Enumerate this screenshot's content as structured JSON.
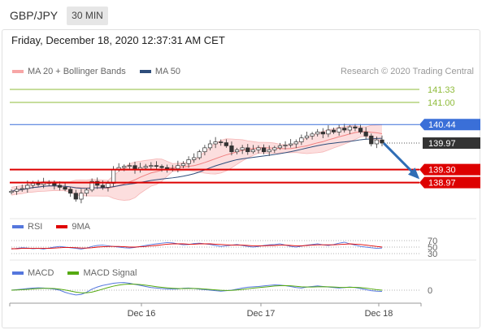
{
  "header": {
    "symbol": "GBP/JPY",
    "timeframe": "30 MIN"
  },
  "datetime": "Friday, December 18, 2020 12:37:31 AM CET",
  "credit": "Research © 2020 Trading Central",
  "colors": {
    "ma20": "#f08080",
    "ma50": "#2e4d7b",
    "bands": "#fbd3d3",
    "resistance_line": "#3a6fd8",
    "support_line": "#dd0000",
    "target_line": "#8fbb3a",
    "rsi": "#5577dd",
    "rsi9ma": "#e00000",
    "macd": "#5577dd",
    "macd_signal": "#55aa11",
    "arrow": "#2f6db5",
    "candle": "#333333"
  },
  "chart_data": [
    {
      "type": "candlestick",
      "pane": "price",
      "legend": [
        {
          "name": "MA 20 + Bollinger Bands",
          "color": "#f08080"
        },
        {
          "name": "MA 50",
          "color": "#2e4d7b"
        }
      ],
      "ylim": [
        138.2,
        141.7
      ],
      "x_ticks": [
        "Dec 16",
        "Dec 17",
        "Dec 18"
      ],
      "close_path": [
        138.75,
        138.8,
        138.82,
        138.9,
        138.95,
        138.92,
        138.98,
        138.95,
        138.9,
        138.85,
        138.8,
        138.7,
        138.55,
        138.7,
        138.78,
        139.0,
        138.9,
        138.85,
        138.95,
        139.3,
        139.35,
        139.38,
        139.4,
        139.3,
        139.35,
        139.38,
        139.4,
        139.38,
        139.35,
        139.3,
        139.32,
        139.4,
        139.45,
        139.55,
        139.6,
        139.75,
        139.85,
        139.95,
        140.0,
        139.98,
        139.9,
        139.75,
        139.8,
        139.85,
        139.75,
        139.8,
        139.85,
        139.75,
        139.8,
        139.85,
        139.9,
        139.92,
        139.95,
        140.0,
        140.1,
        140.15,
        140.2,
        140.25,
        140.2,
        140.3,
        140.25,
        140.35,
        140.3,
        140.38,
        140.35,
        140.25,
        140.15,
        139.95,
        140.05,
        139.97
      ],
      "levels": [
        {
          "label": "141.33",
          "value": 141.33,
          "kind": "target"
        },
        {
          "label": "141.00",
          "value": 141.0,
          "kind": "target"
        },
        {
          "label": "140.44",
          "value": 140.44,
          "kind": "resistance"
        },
        {
          "label": "139.97",
          "value": 139.97,
          "kind": "last"
        },
        {
          "label": "139.30",
          "value": 139.3,
          "kind": "support"
        },
        {
          "label": "138.97",
          "value": 138.97,
          "kind": "support"
        }
      ],
      "forecast": {
        "from": 139.97,
        "to": 139.1,
        "direction": "down"
      }
    },
    {
      "type": "line",
      "pane": "rsi",
      "legend": [
        {
          "name": "RSI",
          "color": "#5577dd"
        },
        {
          "name": "9MA",
          "color": "#e00000"
        }
      ],
      "levels": [
        {
          "label": "70",
          "value": 70
        },
        {
          "label": "50",
          "value": 50
        },
        {
          "label": "30",
          "value": 30
        }
      ],
      "ylim": [
        20,
        80
      ],
      "series": [
        {
          "name": "RSI",
          "values": [
            44,
            46,
            48,
            47,
            45,
            46,
            44,
            47,
            50,
            52,
            50,
            48,
            46,
            44,
            47,
            52,
            55,
            56,
            54,
            52,
            50,
            48,
            47,
            49,
            52,
            55,
            58,
            60,
            62,
            64,
            63,
            60,
            57,
            58,
            61,
            62,
            60,
            58,
            55,
            52,
            54,
            56,
            58,
            55,
            52,
            50,
            52,
            55,
            57,
            58,
            60,
            56,
            52,
            50,
            53,
            56,
            58,
            60,
            57,
            55,
            58,
            62,
            65,
            60,
            56,
            52,
            50,
            48,
            46,
            47
          ]
        },
        {
          "name": "9MA",
          "values": [
            45,
            45,
            46,
            46,
            46,
            46,
            46,
            46,
            47,
            48,
            49,
            49,
            48,
            47,
            47,
            48,
            50,
            51,
            52,
            52,
            52,
            51,
            50,
            50,
            51,
            52,
            54,
            55,
            57,
            59,
            60,
            60,
            60,
            59,
            59,
            60,
            60,
            60,
            59,
            58,
            57,
            56,
            56,
            56,
            55,
            54,
            54,
            54,
            55,
            55,
            56,
            56,
            55,
            54,
            54,
            55,
            56,
            57,
            57,
            57,
            57,
            58,
            59,
            60,
            59,
            58,
            56,
            54,
            52,
            50
          ]
        }
      ]
    },
    {
      "type": "line",
      "pane": "macd",
      "legend": [
        {
          "name": "MACD",
          "color": "#5577dd"
        },
        {
          "name": "MACD Signal",
          "color": "#55aa11"
        }
      ],
      "levels": [
        {
          "label": "0",
          "value": 0
        }
      ],
      "ylim": [
        -1,
        1
      ],
      "series": [
        {
          "name": "MACD",
          "values": [
            0.0,
            0.05,
            0.1,
            0.15,
            0.2,
            0.22,
            0.2,
            0.15,
            0.1,
            0.0,
            -0.2,
            -0.35,
            -0.45,
            -0.4,
            -0.2,
            0.1,
            0.3,
            0.45,
            0.55,
            0.65,
            0.7,
            0.72,
            0.65,
            0.55,
            0.45,
            0.35,
            0.25,
            0.2,
            0.15,
            0.12,
            0.1,
            0.12,
            0.18,
            0.2,
            0.15,
            0.1,
            0.05,
            0.0,
            -0.05,
            -0.1,
            -0.05,
            0.0,
            0.1,
            0.2,
            0.28,
            0.32,
            0.35,
            0.4,
            0.45,
            0.5,
            0.48,
            0.42,
            0.35,
            0.25,
            0.2,
            0.3,
            0.35,
            0.4,
            0.35,
            0.3,
            0.25,
            0.2,
            0.25,
            0.3,
            0.25,
            0.15,
            0.05,
            -0.05,
            -0.1,
            -0.12
          ]
        },
        {
          "name": "MACD Signal",
          "values": [
            0.0,
            0.02,
            0.05,
            0.08,
            0.12,
            0.15,
            0.17,
            0.17,
            0.15,
            0.1,
            0.02,
            -0.08,
            -0.18,
            -0.25,
            -0.25,
            -0.18,
            -0.05,
            0.1,
            0.25,
            0.38,
            0.48,
            0.55,
            0.58,
            0.57,
            0.53,
            0.47,
            0.4,
            0.33,
            0.27,
            0.22,
            0.18,
            0.15,
            0.15,
            0.16,
            0.16,
            0.14,
            0.11,
            0.07,
            0.03,
            -0.01,
            -0.03,
            -0.02,
            0.02,
            0.07,
            0.13,
            0.19,
            0.24,
            0.29,
            0.34,
            0.39,
            0.42,
            0.43,
            0.41,
            0.37,
            0.32,
            0.3,
            0.3,
            0.32,
            0.33,
            0.32,
            0.3,
            0.27,
            0.26,
            0.27,
            0.27,
            0.24,
            0.19,
            0.12,
            0.05,
            0.0
          ]
        }
      ]
    }
  ]
}
